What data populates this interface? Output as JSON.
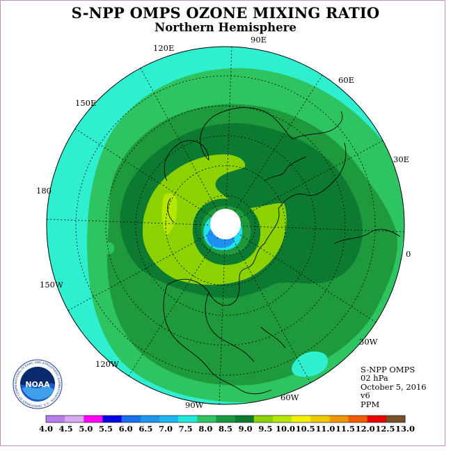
{
  "header": {
    "title": "S-NPP OMPS OZONE MIXING RATIO",
    "subtitle": "Northern Hemisphere"
  },
  "longitude_labels": [
    "120E",
    "90E",
    "60E",
    "150E",
    "30E",
    "180",
    "0",
    "150W",
    "30W",
    "120W",
    "90W",
    "60W"
  ],
  "info": {
    "instrument": "S-NPP OMPS",
    "level": "02 hPa",
    "date": "October 5, 2016",
    "version": "v6",
    "units": "PPM"
  },
  "logo": {
    "text": "NOAA",
    "ring_text": "NATIONAL OCEANIC AND ATMOSPHERIC ADMINISTRATION · U.S. DEPARTMENT OF COMMERCE"
  },
  "colorbar": {
    "ticks": [
      "4.0",
      "4.5",
      "5.0",
      "5.5",
      "6.0",
      "6.5",
      "7.0",
      "7.5",
      "8.0",
      "8.5",
      "9.0",
      "9.5",
      "10.0",
      "10.5",
      "11.0",
      "11.5",
      "12.0",
      "12.5",
      "13.0"
    ],
    "colors": [
      "#b77de8",
      "#d8a8f0",
      "#ff00ff",
      "#0000e0",
      "#1a6ef0",
      "#1e96f0",
      "#1eb4f0",
      "#20e8d8",
      "#2ec462",
      "#1a9a40",
      "#0e7a30",
      "#8cd200",
      "#b4e600",
      "#f0f000",
      "#f0c800",
      "#f09600",
      "#f05a00",
      "#e80000",
      "#7a5028"
    ]
  },
  "map_colors": {
    "background_level": "#2ef0d0",
    "level_8_5": "#1e9a3c",
    "level_9_0": "#0c7a30",
    "level_9_5": "#8cd200",
    "level_10_0": "#b4e600",
    "low_blue": "#1e90f0",
    "low_cyan": "#20e0f0"
  }
}
